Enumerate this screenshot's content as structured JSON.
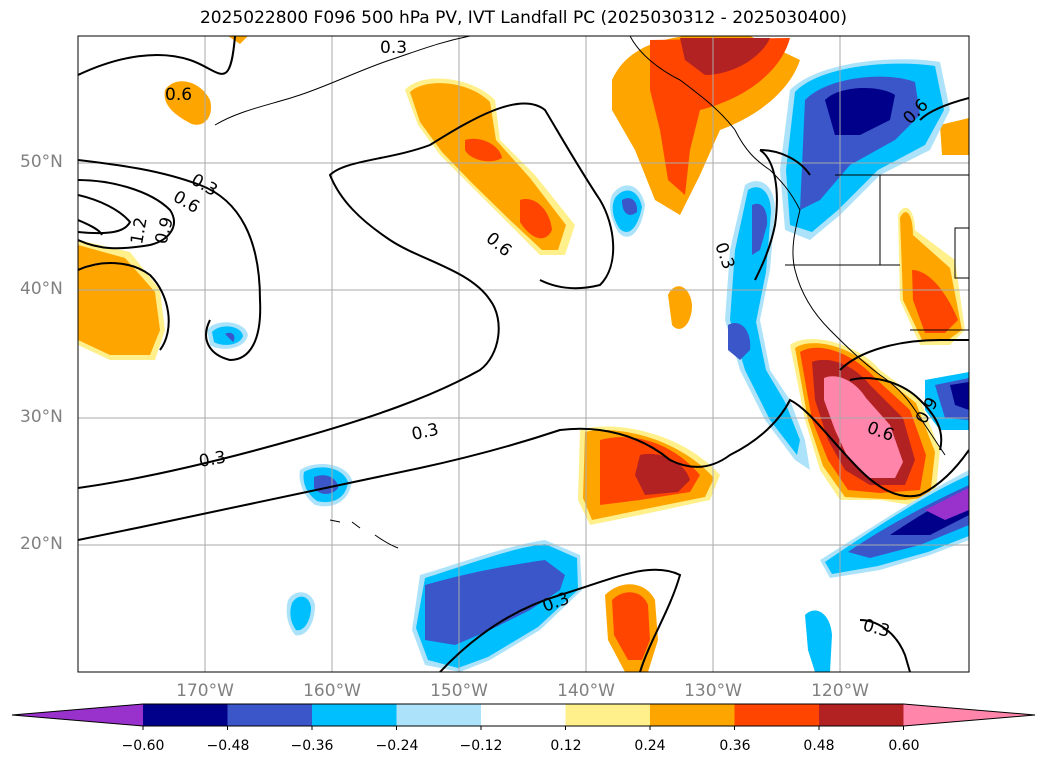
{
  "title": "2025022800 F096 500 hPa PV, IVT Landfall PC (2025030312 - 2025030400)",
  "map": {
    "lat_labels": [
      "50°N",
      "40°N",
      "30°N",
      "20°N"
    ],
    "lon_labels": [
      "170°W",
      "160°W",
      "150°W",
      "140°W",
      "130°W",
      "120°W"
    ],
    "contour_labels": [
      "0.3",
      "0.6",
      "0.6",
      "0.3",
      "0.6",
      "1.2",
      "0.9",
      "0.6",
      "0.3",
      "0.3",
      "0.3",
      "0.3",
      "0.6",
      "0.9",
      "0.3",
      "0.6"
    ]
  },
  "colorbar": {
    "ticks": [
      "−0.60",
      "−0.48",
      "−0.36",
      "−0.24",
      "−0.12",
      "0.12",
      "0.24",
      "0.36",
      "0.48",
      "0.60"
    ],
    "colors": [
      "#9932cc",
      "#00008b",
      "#3a56c8",
      "#00bfff",
      "#ade3fa",
      "#ffffff",
      "#fff08c",
      "#ffa500",
      "#ff4500",
      "#b22222",
      "#ff85aa"
    ]
  }
}
